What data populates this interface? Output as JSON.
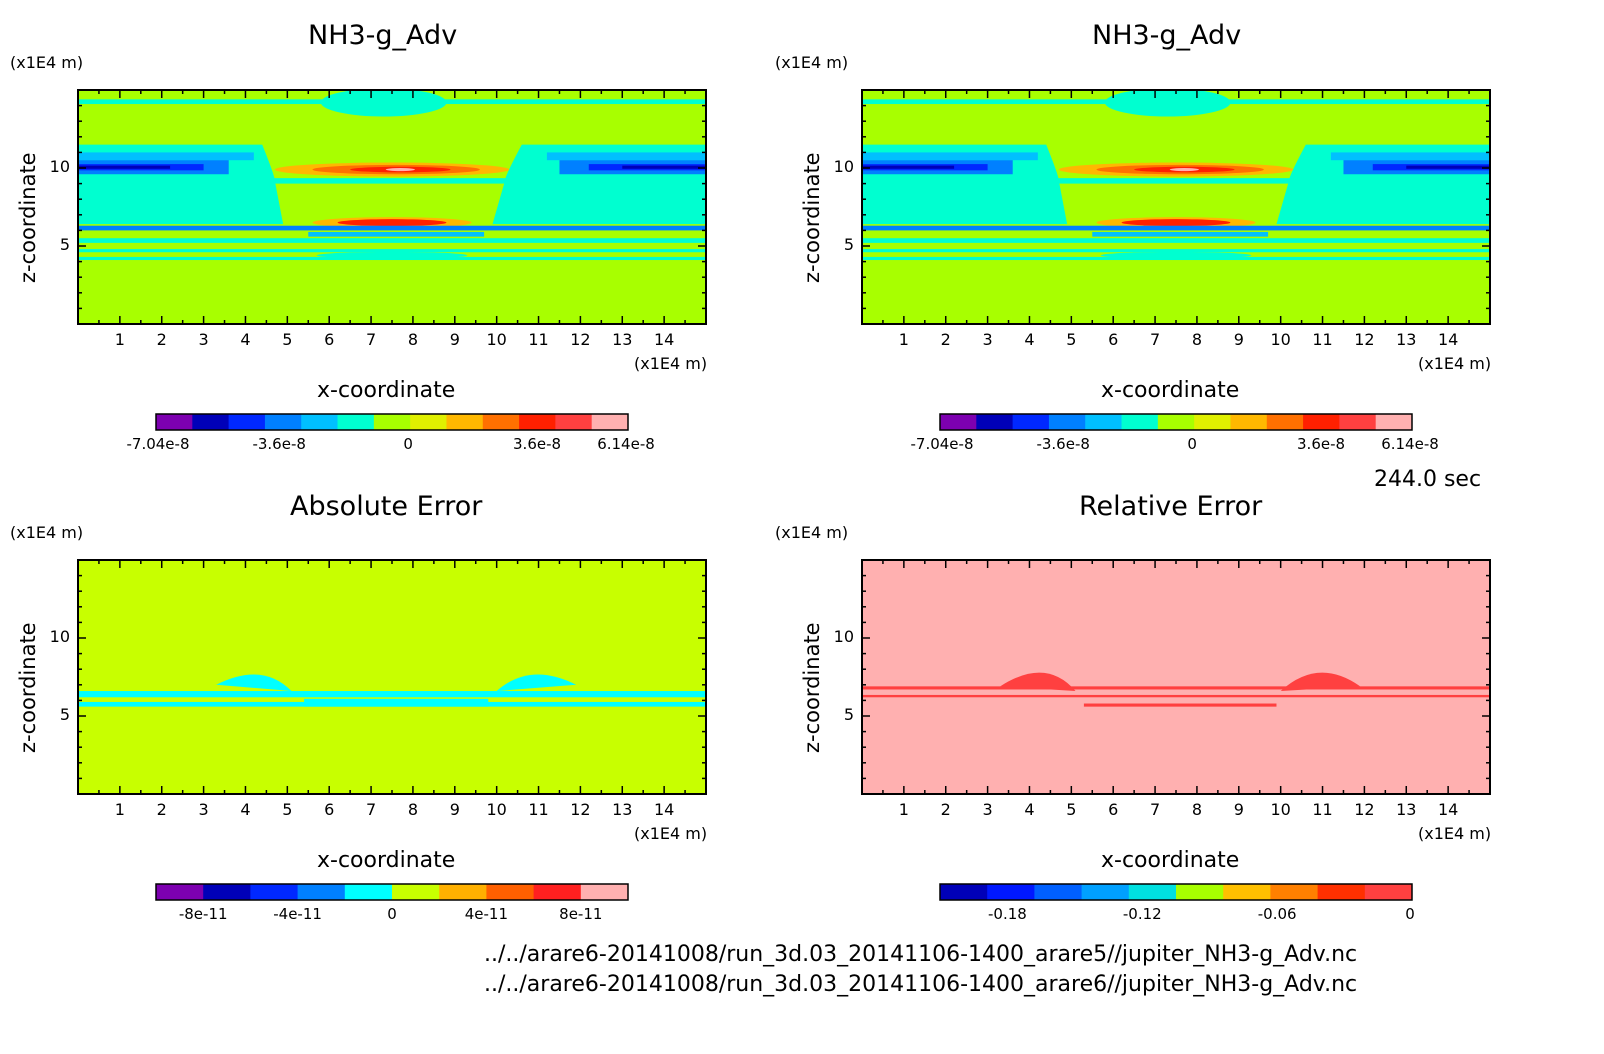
{
  "time_label": "244.0 sec",
  "file_paths": [
    "../../arare6-20141008/run_3d.03_20141106-1400_arare5//jupiter_NH3-g_Adv.nc",
    "../../arare6-20141008/run_3d.03_20141106-1400_arare6//jupiter_NH3-g_Adv.nc"
  ],
  "chart_data": [
    {
      "type": "heatmap",
      "title": "NH3-g_Adv",
      "xlabel": "x-coordinate",
      "ylabel": "z-coordinate",
      "x_unit": "(x1E4 m)",
      "y_unit": "(x1E4 m)",
      "xlim": [
        0,
        15
      ],
      "ylim": [
        0,
        15
      ],
      "x_ticks": [
        "1",
        "2",
        "3",
        "4",
        "5",
        "6",
        "7",
        "8",
        "9",
        "10",
        "11",
        "12",
        "13",
        "14"
      ],
      "y_ticks": [
        "5",
        "10"
      ],
      "colorbar_colors": [
        "#7d00b0",
        "#0000b8",
        "#0028ff",
        "#0080ff",
        "#00c0ff",
        "#00ffd0",
        "#a8ff00",
        "#e0f000",
        "#ffb800",
        "#ff7000",
        "#ff2000",
        "#ff4040",
        "#ffb0b0"
      ],
      "colorbar_labels": [
        "-7.04e-8",
        "-3.6e-8",
        "0",
        "3.6e-8",
        "6.14e-8"
      ],
      "colorbar_range": [
        -7.04e-08,
        6.14e-08
      ]
    },
    {
      "type": "heatmap",
      "title": "NH3-g_Adv",
      "xlabel": "x-coordinate",
      "ylabel": "z-coordinate",
      "x_unit": "(x1E4 m)",
      "y_unit": "(x1E4 m)",
      "xlim": [
        0,
        15
      ],
      "ylim": [
        0,
        15
      ],
      "x_ticks": [
        "1",
        "2",
        "3",
        "4",
        "5",
        "6",
        "7",
        "8",
        "9",
        "10",
        "11",
        "12",
        "13",
        "14"
      ],
      "y_ticks": [
        "5",
        "10"
      ],
      "colorbar_colors": [
        "#7d00b0",
        "#0000b8",
        "#0028ff",
        "#0080ff",
        "#00c0ff",
        "#00ffd0",
        "#a8ff00",
        "#e0f000",
        "#ffb800",
        "#ff7000",
        "#ff2000",
        "#ff4040",
        "#ffb0b0"
      ],
      "colorbar_labels": [
        "-7.04e-8",
        "-3.6e-8",
        "0",
        "3.6e-8",
        "6.14e-8"
      ],
      "colorbar_range": [
        -7.04e-08,
        6.14e-08
      ]
    },
    {
      "type": "heatmap",
      "title": "Absolute Error",
      "xlabel": "x-coordinate",
      "ylabel": "z-coordinate",
      "x_unit": "(x1E4 m)",
      "y_unit": "(x1E4 m)",
      "xlim": [
        0,
        15
      ],
      "ylim": [
        0,
        15
      ],
      "x_ticks": [
        "1",
        "2",
        "3",
        "4",
        "5",
        "6",
        "7",
        "8",
        "9",
        "10",
        "11",
        "12",
        "13",
        "14"
      ],
      "y_ticks": [
        "5",
        "10"
      ],
      "colorbar_colors": [
        "#7d00b0",
        "#0000b8",
        "#0028ff",
        "#0080ff",
        "#00ffff",
        "#c8ff00",
        "#ffb000",
        "#ff6000",
        "#ff2020",
        "#ffb0b0"
      ],
      "colorbar_labels": [
        "-8e-11",
        "-4e-11",
        "0",
        "4e-11",
        "8e-11"
      ],
      "colorbar_range": [
        -1e-10,
        1e-10
      ]
    },
    {
      "type": "heatmap",
      "title": "Relative Error",
      "xlabel": "x-coordinate",
      "ylabel": "z-coordinate",
      "x_unit": "(x1E4 m)",
      "y_unit": "(x1E4 m)",
      "xlim": [
        0,
        15
      ],
      "ylim": [
        0,
        15
      ],
      "x_ticks": [
        "1",
        "2",
        "3",
        "4",
        "5",
        "6",
        "7",
        "8",
        "9",
        "10",
        "11",
        "12",
        "13",
        "14"
      ],
      "y_ticks": [
        "5",
        "10"
      ],
      "colorbar_colors": [
        "#0000b8",
        "#0018ff",
        "#0060ff",
        "#00a0ff",
        "#00e0e0",
        "#a8ff00",
        "#ffc000",
        "#ff8000",
        "#ff3000",
        "#ff4040"
      ],
      "colorbar_labels": [
        "-0.18",
        "-0.12",
        "-0.06",
        "0"
      ],
      "colorbar_range": [
        -0.21,
        0
      ]
    }
  ]
}
